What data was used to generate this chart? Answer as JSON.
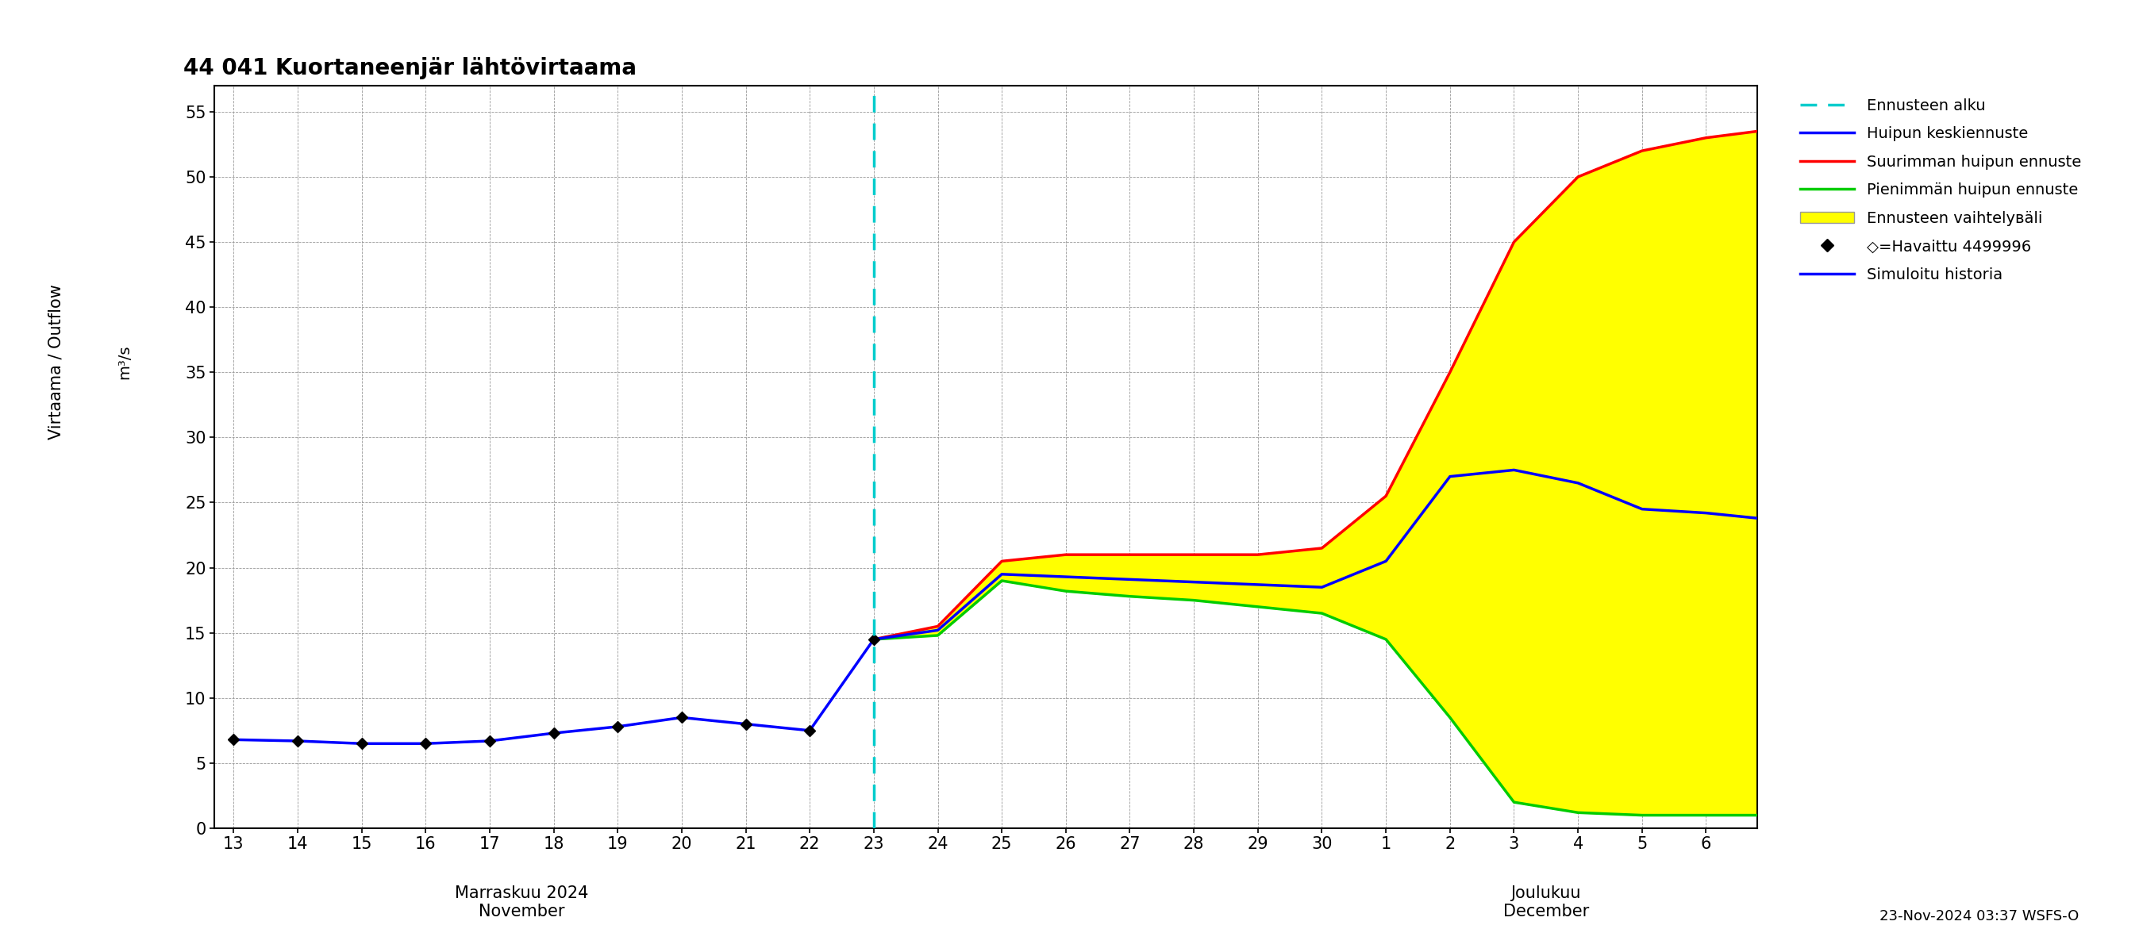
{
  "title": "44 041 Kuortaneenjär lähtövirtaama",
  "footer": "23-Nov-2024 03:37 WSFS-O",
  "ylim": [
    0,
    57
  ],
  "yticks": [
    0,
    5,
    10,
    15,
    20,
    25,
    30,
    35,
    40,
    45,
    50,
    55
  ],
  "background_color": "#ffffff",
  "grid_color": "#999999",
  "observed_x_nov": [
    13,
    14,
    15,
    16,
    17,
    18,
    19,
    20,
    21,
    22,
    23
  ],
  "observed_y": [
    6.8,
    6.7,
    6.5,
    6.5,
    6.7,
    7.3,
    7.8,
    8.5,
    8.0,
    7.5,
    14.5
  ],
  "forecast_nov_x": [
    23,
    24,
    25,
    26,
    27,
    28,
    29,
    30
  ],
  "forecast_dec_x": [
    1,
    2,
    3,
    4,
    5,
    6,
    6.8
  ],
  "mean_y_nov": [
    14.5,
    15.2,
    19.5,
    19.3,
    19.1,
    18.9,
    18.7,
    18.5
  ],
  "mean_y_dec": [
    20.5,
    27.0,
    27.5,
    26.5,
    24.5,
    24.2,
    23.8
  ],
  "max_y_nov": [
    14.5,
    15.5,
    20.5,
    21.0,
    21.0,
    21.0,
    21.0,
    21.5
  ],
  "max_y_dec": [
    25.5,
    35.0,
    45.0,
    50.0,
    52.0,
    53.0,
    53.5
  ],
  "min_y_nov": [
    14.5,
    14.8,
    19.0,
    18.2,
    17.8,
    17.5,
    17.0,
    16.5
  ],
  "min_y_dec": [
    14.5,
    8.5,
    2.0,
    1.2,
    1.0,
    1.0,
    1.0
  ],
  "observed_color": "#0000ff",
  "mean_color": "#0000ff",
  "max_color": "#ff0000",
  "min_color": "#00cc00",
  "fill_color": "#ffff00",
  "forecast_line_color": "#00cccc",
  "legend_labels": [
    "Ennusteen alku",
    "Huipun keskiennuste",
    "Suurimman huipun ennuste",
    "Pienimmän huipun ennuste",
    "Ennusteen vaihtelувäli",
    "◇=Havaittu 4499996",
    "Simuloitu historia"
  ]
}
